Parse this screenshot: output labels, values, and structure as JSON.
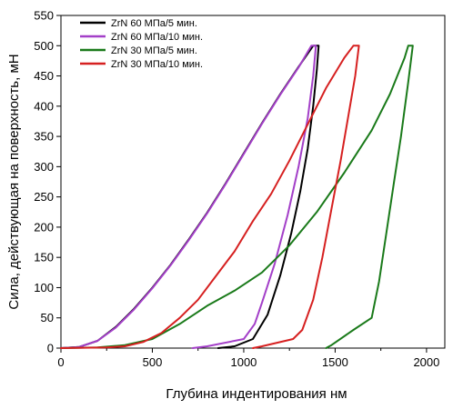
{
  "chart_data": {
    "type": "line",
    "xlabel": "Глубина индентирования нм",
    "ylabel": "Сила, действующая на поверхность, мН",
    "xlim": [
      0,
      2100
    ],
    "ylim": [
      0,
      550
    ],
    "xticks": [
      0,
      500,
      1000,
      1500,
      2000
    ],
    "yticks": [
      0,
      50,
      100,
      150,
      200,
      250,
      300,
      350,
      400,
      450,
      500,
      550
    ],
    "legend_position": "top-left",
    "grid": false,
    "series": [
      {
        "name": "ZrN 60 МПа/5 мин.",
        "color": "#000000",
        "points": [
          [
            0,
            0
          ],
          [
            100,
            2
          ],
          [
            200,
            12
          ],
          [
            300,
            35
          ],
          [
            400,
            65
          ],
          [
            500,
            100
          ],
          [
            600,
            138
          ],
          [
            700,
            180
          ],
          [
            800,
            224
          ],
          [
            900,
            272
          ],
          [
            1000,
            322
          ],
          [
            1100,
            372
          ],
          [
            1200,
            420
          ],
          [
            1300,
            465
          ],
          [
            1380,
            500
          ],
          [
            1410,
            500
          ],
          [
            1400,
            460
          ],
          [
            1380,
            400
          ],
          [
            1350,
            330
          ],
          [
            1310,
            260
          ],
          [
            1260,
            190
          ],
          [
            1200,
            120
          ],
          [
            1130,
            55
          ],
          [
            1050,
            15
          ],
          [
            950,
            3
          ],
          [
            860,
            0
          ]
        ]
      },
      {
        "name": "ZrN 60 МПа/10 мин.",
        "color": "#a33fc8",
        "points": [
          [
            0,
            0
          ],
          [
            100,
            2
          ],
          [
            200,
            12
          ],
          [
            300,
            34
          ],
          [
            400,
            64
          ],
          [
            500,
            99
          ],
          [
            600,
            137
          ],
          [
            700,
            179
          ],
          [
            800,
            223
          ],
          [
            900,
            271
          ],
          [
            1000,
            321
          ],
          [
            1100,
            371
          ],
          [
            1200,
            419
          ],
          [
            1300,
            464
          ],
          [
            1370,
            500
          ],
          [
            1395,
            500
          ],
          [
            1380,
            450
          ],
          [
            1350,
            380
          ],
          [
            1300,
            300
          ],
          [
            1240,
            220
          ],
          [
            1170,
            140
          ],
          [
            1100,
            75
          ],
          [
            1060,
            40
          ],
          [
            1000,
            15
          ],
          [
            800,
            3
          ],
          [
            720,
            0
          ]
        ]
      },
      {
        "name": "ZrN 30 МПа/5 мин.",
        "color": "#1a7a1a",
        "points": [
          [
            0,
            0
          ],
          [
            200,
            1
          ],
          [
            350,
            5
          ],
          [
            500,
            15
          ],
          [
            650,
            40
          ],
          [
            800,
            70
          ],
          [
            950,
            95
          ],
          [
            1100,
            125
          ],
          [
            1250,
            170
          ],
          [
            1400,
            225
          ],
          [
            1550,
            290
          ],
          [
            1700,
            360
          ],
          [
            1800,
            420
          ],
          [
            1880,
            480
          ],
          [
            1900,
            500
          ],
          [
            1925,
            500
          ],
          [
            1900,
            440
          ],
          [
            1860,
            350
          ],
          [
            1820,
            270
          ],
          [
            1780,
            190
          ],
          [
            1740,
            110
          ],
          [
            1700,
            50
          ],
          [
            1600,
            30
          ],
          [
            1480,
            5
          ],
          [
            1450,
            0
          ]
        ]
      },
      {
        "name": "ZrN 30 МПа/10 мин.",
        "color": "#d62020",
        "points": [
          [
            0,
            0
          ],
          [
            250,
            1
          ],
          [
            350,
            3
          ],
          [
            450,
            10
          ],
          [
            550,
            25
          ],
          [
            650,
            50
          ],
          [
            750,
            80
          ],
          [
            850,
            120
          ],
          [
            950,
            160
          ],
          [
            1050,
            210
          ],
          [
            1150,
            255
          ],
          [
            1250,
            310
          ],
          [
            1350,
            370
          ],
          [
            1450,
            430
          ],
          [
            1550,
            480
          ],
          [
            1600,
            500
          ],
          [
            1630,
            500
          ],
          [
            1610,
            450
          ],
          [
            1570,
            380
          ],
          [
            1530,
            310
          ],
          [
            1480,
            230
          ],
          [
            1430,
            150
          ],
          [
            1380,
            80
          ],
          [
            1320,
            30
          ],
          [
            1270,
            15
          ],
          [
            1100,
            3
          ],
          [
            1050,
            0
          ]
        ]
      }
    ]
  }
}
